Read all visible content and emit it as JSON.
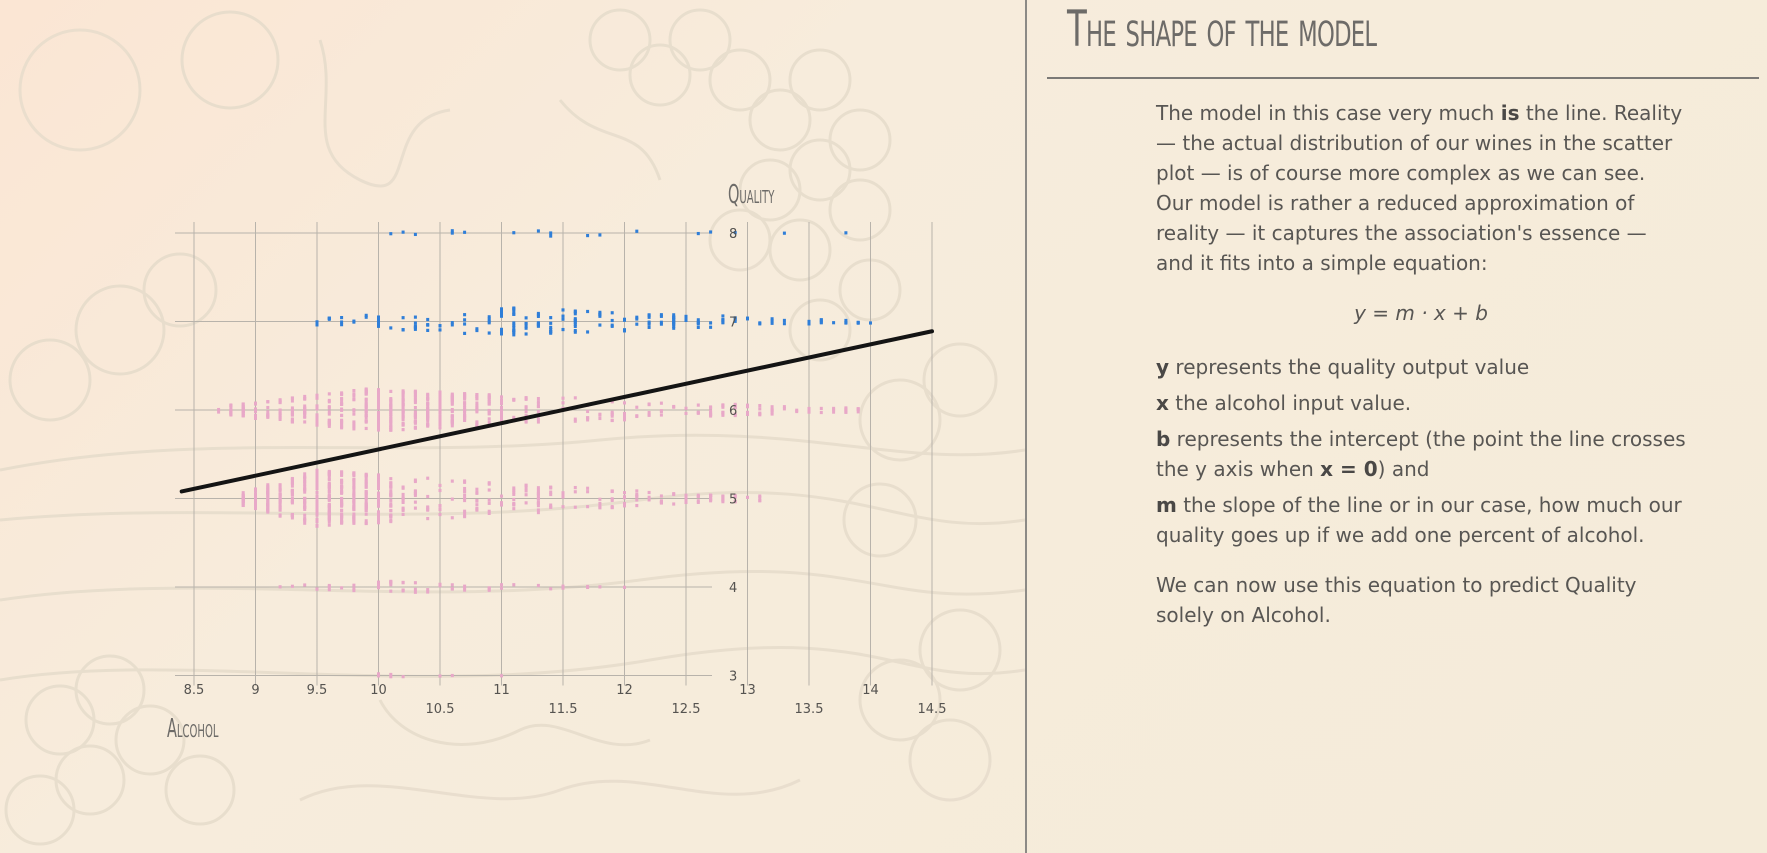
{
  "section": {
    "title": "The shape of the model"
  },
  "text": {
    "intro_part1": "The model in this case very much ",
    "intro_bold": "is",
    "intro_part2": " the line. Reality — the actual distribution of our wines in the scatter plot — is of course more complex as we can see. Our model is rather a reduced approximation of reality — it captures the association's essence — and it fits into a simple equation:",
    "equation": "y = m · x + b",
    "def_y_var": "y",
    "def_y_text": " represents the quality output value",
    "def_x_var": "x",
    "def_x_text": " the alcohol input value.",
    "def_b_var": "b",
    "def_b_text1": " represents the intercept (the point the line crosses the y axis when ",
    "def_b_bold2": "x = 0",
    "def_b_text2": ") and",
    "def_m_var": "m",
    "def_m_text": " the slope of the line or in our case, how much our quality goes up if we add one percent of alcohol.",
    "closing": "We can now use this equation to predict Quality solely on Alcohol."
  },
  "chart_data": {
    "type": "scatter",
    "title": "",
    "xlabel": "Alcohol",
    "ylabel": "Quality",
    "xlim": [
      8.4,
      14.5
    ],
    "ylim": [
      3,
      8
    ],
    "x_ticks_upper": [
      8.5,
      9,
      9.5,
      10,
      11,
      12,
      13,
      14
    ],
    "x_ticks_lower": [
      10.5,
      11.5,
      12.5,
      13.5,
      14.5
    ],
    "y_ticks": [
      3,
      4,
      5,
      6,
      7,
      8
    ],
    "grid": true,
    "regression_line": {
      "x": [
        8.4,
        14.5
      ],
      "y": [
        5.08,
        6.89
      ]
    },
    "series": [
      {
        "class": "good",
        "color": "#2f7ed8",
        "groups": [
          {
            "quality": 8,
            "x_min": 9.8,
            "x_max": 14.0,
            "peak": 11.0,
            "max_spread": 0.04,
            "n": 18
          },
          {
            "quality": 7,
            "x_min": 9.0,
            "x_max": 14.0,
            "peak": 11.0,
            "max_spread": 0.16,
            "n": 200
          }
        ]
      },
      {
        "class": "other",
        "color": "#e8a8c8",
        "groups": [
          {
            "quality": 6,
            "x_min": 8.4,
            "x_max": 14.0,
            "peak": 9.9,
            "max_spread": 0.24,
            "n": 640
          },
          {
            "quality": 5,
            "x_min": 8.7,
            "x_max": 13.1,
            "peak": 9.5,
            "max_spread": 0.32,
            "n": 680
          },
          {
            "quality": 4,
            "x_min": 9.0,
            "x_max": 12.0,
            "peak": 10.0,
            "max_spread": 0.07,
            "n": 55
          },
          {
            "quality": 3,
            "x_min": 9.6,
            "x_max": 11.0,
            "peak": 10.0,
            "max_spread": 0.02,
            "n": 10
          }
        ]
      }
    ],
    "colors": {
      "good": "#2f7ed8",
      "other": "#e8a8c8",
      "line": "#141414",
      "grid": "#b8b3ab"
    }
  }
}
